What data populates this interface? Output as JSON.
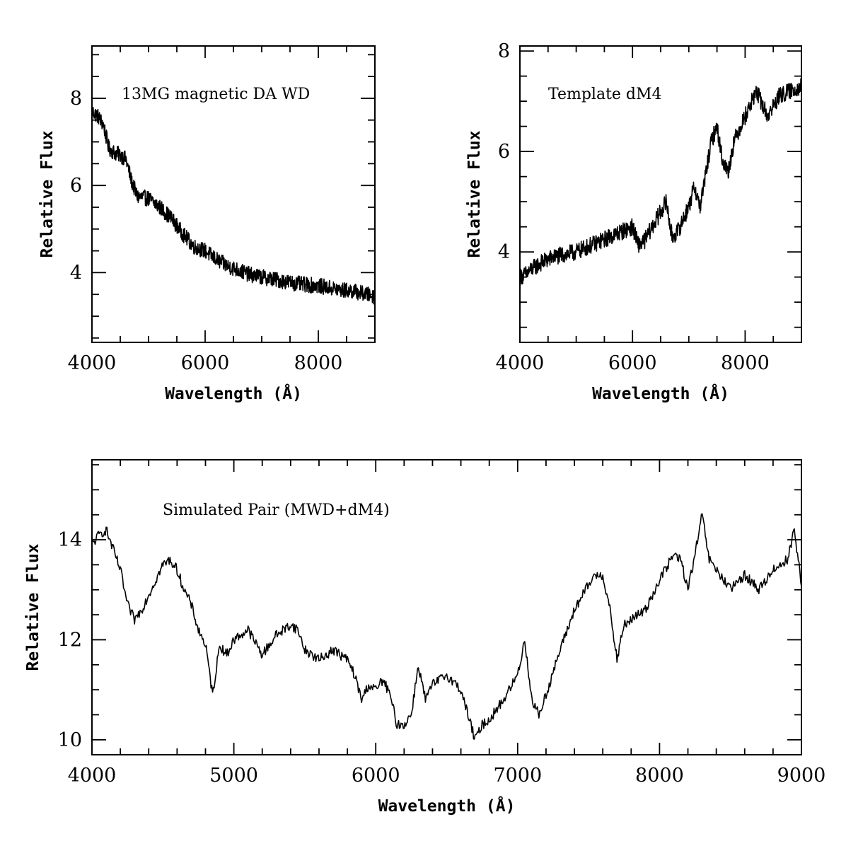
{
  "chart_data": [
    {
      "type": "line",
      "annotation": "13MG magnetic DA WD",
      "xlabel": "Wavelength (Å)",
      "ylabel": "Relative Flux",
      "xlim": [
        4000,
        9000
      ],
      "ylim": [
        2.4,
        9.2
      ],
      "xticks": [
        4000,
        6000,
        8000
      ],
      "yticks": [
        4,
        6,
        8
      ],
      "series": [
        {
          "noise": 0.18,
          "x": [
            4000,
            4100,
            4200,
            4300,
            4400,
            4500,
            4600,
            4700,
            4800,
            5000,
            5200,
            5400,
            5600,
            5800,
            6000,
            6200,
            6400,
            6600,
            6800,
            7000,
            7200,
            7400,
            7600,
            7800,
            8000,
            8200,
            8400,
            8600,
            8800,
            9000
          ],
          "values": [
            7.7,
            7.6,
            7.4,
            6.85,
            6.75,
            6.7,
            6.6,
            6.1,
            5.75,
            5.7,
            5.5,
            5.25,
            4.9,
            4.6,
            4.5,
            4.3,
            4.15,
            4.05,
            3.95,
            3.9,
            3.85,
            3.8,
            3.75,
            3.72,
            3.7,
            3.65,
            3.6,
            3.58,
            3.52,
            3.45
          ]
        }
      ]
    },
    {
      "type": "line",
      "annotation": "Template dM4",
      "xlabel": "Wavelength (Å)",
      "ylabel": "Relative Flux",
      "xlim": [
        4000,
        9000
      ],
      "ylim": [
        2.2,
        8.1
      ],
      "xticks": [
        4000,
        6000,
        8000
      ],
      "yticks": [
        4,
        6,
        8
      ],
      "series": [
        {
          "noise": 0.17,
          "x": [
            4000,
            4100,
            4200,
            4400,
            4600,
            4800,
            5000,
            5200,
            5400,
            5600,
            5800,
            6000,
            6100,
            6200,
            6400,
            6600,
            6700,
            6800,
            7000,
            7100,
            7200,
            7400,
            7500,
            7600,
            7700,
            7800,
            8000,
            8200,
            8400,
            8600,
            8800,
            9000
          ],
          "values": [
            3.5,
            3.55,
            3.65,
            3.8,
            3.9,
            3.95,
            4.0,
            4.1,
            4.2,
            4.3,
            4.4,
            4.5,
            4.15,
            4.2,
            4.6,
            5.0,
            4.3,
            4.4,
            4.9,
            5.3,
            4.9,
            6.2,
            6.5,
            5.8,
            5.6,
            6.2,
            6.7,
            7.2,
            6.7,
            7.1,
            7.2,
            7.3
          ]
        }
      ]
    },
    {
      "type": "line",
      "annotation": "Simulated Pair (MWD+dM4)",
      "xlabel": "Wavelength (Å)",
      "ylabel": "Relative Flux",
      "xlim": [
        4000,
        9000
      ],
      "ylim": [
        9.7,
        15.6
      ],
      "xticks": [
        4000,
        5000,
        6000,
        7000,
        8000,
        9000
      ],
      "yticks": [
        10,
        12,
        14
      ],
      "series": [
        {
          "noise": 0.1,
          "x": [
            4000,
            4050,
            4100,
            4150,
            4200,
            4250,
            4300,
            4350,
            4400,
            4450,
            4500,
            4550,
            4600,
            4650,
            4700,
            4750,
            4800,
            4850,
            4900,
            4950,
            5000,
            5100,
            5200,
            5300,
            5400,
            5450,
            5500,
            5600,
            5700,
            5800,
            5850,
            5900,
            5950,
            6000,
            6050,
            6100,
            6150,
            6200,
            6250,
            6300,
            6350,
            6400,
            6500,
            6600,
            6650,
            6700,
            6750,
            6800,
            6900,
            7000,
            7050,
            7100,
            7150,
            7200,
            7300,
            7400,
            7500,
            7550,
            7600,
            7650,
            7700,
            7750,
            7800,
            7900,
            8000,
            8100,
            8150,
            8200,
            8250,
            8300,
            8350,
            8400,
            8500,
            8600,
            8700,
            8800,
            8900,
            8950,
            9000
          ],
          "values": [
            13.9,
            14.1,
            14.2,
            13.8,
            13.4,
            12.7,
            12.4,
            12.6,
            12.9,
            13.2,
            13.5,
            13.6,
            13.4,
            13.0,
            12.7,
            12.2,
            11.9,
            10.9,
            11.9,
            11.7,
            12.0,
            12.2,
            11.7,
            12.1,
            12.3,
            12.2,
            11.8,
            11.6,
            11.8,
            11.6,
            11.3,
            10.8,
            11.1,
            11.0,
            11.2,
            10.9,
            10.3,
            10.3,
            10.5,
            11.5,
            10.8,
            11.1,
            11.3,
            11.0,
            10.5,
            10.0,
            10.3,
            10.4,
            10.8,
            11.3,
            12.0,
            10.8,
            10.5,
            10.9,
            11.8,
            12.6,
            13.1,
            13.3,
            13.3,
            12.6,
            11.6,
            12.3,
            12.4,
            12.6,
            13.2,
            13.7,
            13.6,
            13.0,
            13.7,
            14.5,
            13.6,
            13.4,
            13.0,
            13.3,
            13.0,
            13.4,
            13.6,
            14.2,
            13.1
          ]
        }
      ]
    }
  ]
}
